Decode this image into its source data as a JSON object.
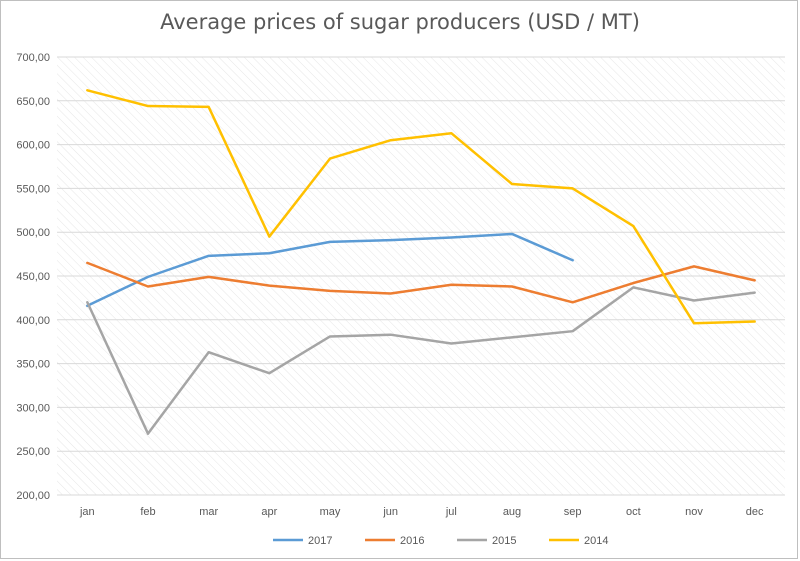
{
  "chart_data": {
    "type": "line",
    "title": "Average prices of sugar producers (USD / MT)",
    "categories": [
      "jan",
      "feb",
      "mar",
      "apr",
      "may",
      "jun",
      "jul",
      "aug",
      "sep",
      "oct",
      "nov",
      "dec"
    ],
    "ylim": [
      200,
      700
    ],
    "yticks": [
      "200,00",
      "250,00",
      "300,00",
      "350,00",
      "400,00",
      "450,00",
      "500,00",
      "550,00",
      "600,00",
      "650,00",
      "700,00"
    ],
    "ytick_values": [
      200,
      250,
      300,
      350,
      400,
      450,
      500,
      550,
      600,
      650,
      700
    ],
    "grid": true,
    "legend_position": "bottom",
    "series": [
      {
        "name": "2017",
        "color": "#5b9bd5",
        "values": [
          416,
          449,
          473,
          476,
          489,
          491,
          494,
          498,
          468,
          null,
          null,
          null
        ]
      },
      {
        "name": "2016",
        "color": "#ed7d31",
        "values": [
          465,
          438,
          449,
          439,
          433,
          430,
          440,
          438,
          420,
          442,
          461,
          445
        ]
      },
      {
        "name": "2015",
        "color": "#a5a5a5",
        "values": [
          420,
          270,
          363,
          339,
          381,
          383,
          373,
          380,
          387,
          437,
          422,
          431
        ]
      },
      {
        "name": "2014",
        "color": "#ffc000",
        "values": [
          662,
          644,
          643,
          495,
          584,
          605,
          613,
          555,
          550,
          507,
          396,
          398
        ]
      }
    ]
  }
}
